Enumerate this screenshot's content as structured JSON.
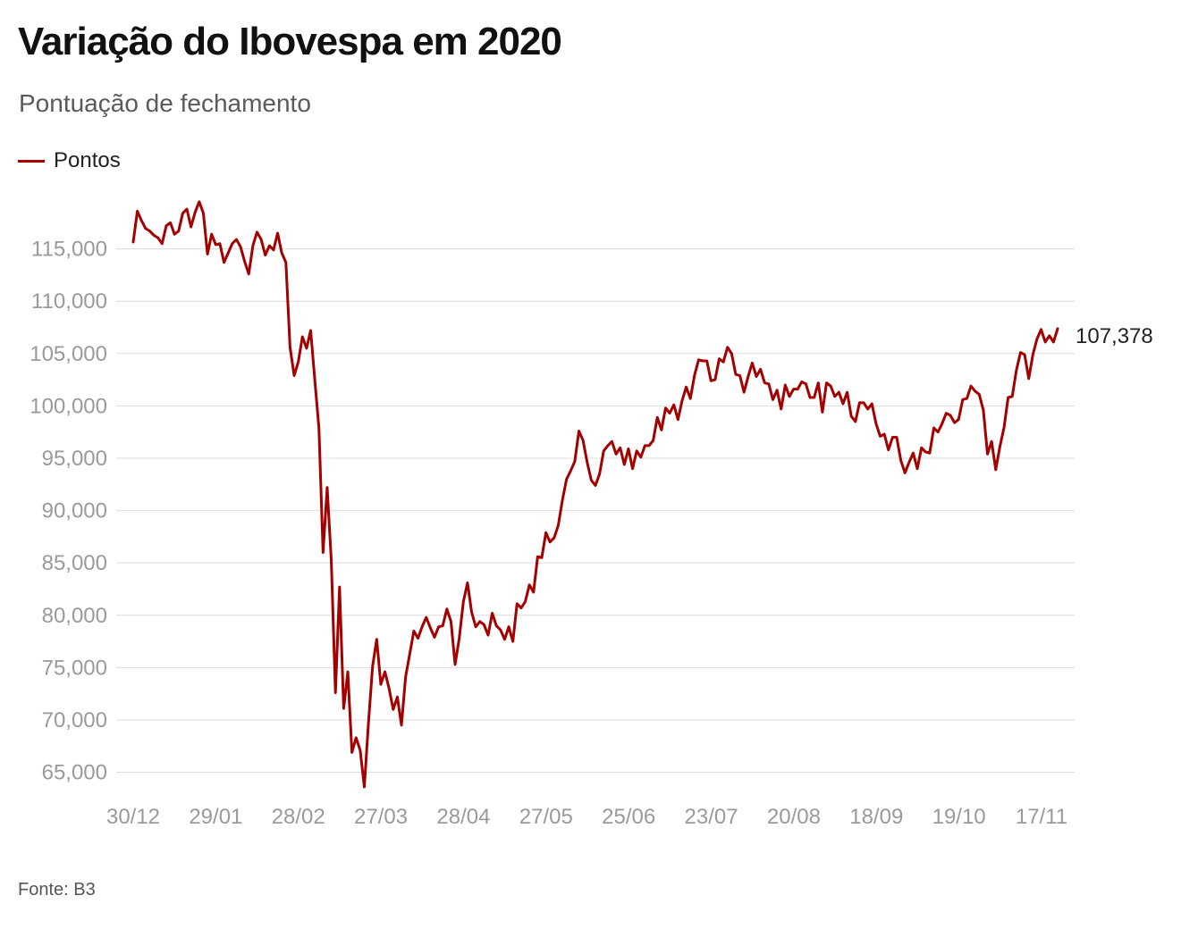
{
  "header": {
    "title": "Variação do Ibovespa em 2020",
    "subtitle": "Pontuação de fechamento"
  },
  "legend": {
    "label": "Pontos",
    "color": "#a50000"
  },
  "footer": {
    "source": "Fonte: B3"
  },
  "chart_data": {
    "type": "line",
    "title": "Variação do Ibovespa em 2020",
    "subtitle": "Pontuação de fechamento",
    "xlabel": "",
    "ylabel": "",
    "ylim": [
      63000,
      120000
    ],
    "grid": true,
    "legend_position": "top-left",
    "y_ticks": [
      65000,
      70000,
      75000,
      80000,
      85000,
      90000,
      95000,
      100000,
      105000,
      110000,
      115000
    ],
    "y_tick_labels": [
      "65,000",
      "70,000",
      "75,000",
      "80,000",
      "85,000",
      "90,000",
      "95,000",
      "100,000",
      "105,000",
      "110,000",
      "115,000"
    ],
    "x_ticks": [
      "30/12",
      "29/01",
      "28/02",
      "27/03",
      "28/04",
      "27/05",
      "25/06",
      "23/07",
      "20/08",
      "18/09",
      "19/10",
      "17/11"
    ],
    "end_label": "107,378",
    "series": [
      {
        "name": "Pontos",
        "color": "#a50000",
        "values": [
          115650,
          118600,
          117700,
          116950,
          116700,
          116300,
          116050,
          115500,
          117200,
          117500,
          116400,
          116700,
          118400,
          118800,
          117100,
          118500,
          119500,
          118400,
          114500,
          116400,
          115400,
          115500,
          113700,
          114600,
          115500,
          115900,
          115200,
          113800,
          112600,
          115300,
          116600,
          115900,
          114400,
          115300,
          114900,
          116500,
          114600,
          113700,
          105600,
          102900,
          104200,
          106600,
          105500,
          107200,
          102500,
          97900,
          86000,
          92200,
          85200,
          72600,
          82700,
          71100,
          74600,
          66900,
          68300,
          67100,
          63600,
          69700,
          75100,
          77700,
          73400,
          74600,
          73000,
          71000,
          72200,
          69500,
          74100,
          76300,
          78500,
          77800,
          78900,
          79800,
          78800,
          77900,
          78900,
          79000,
          80600,
          79400,
          75300,
          77800,
          81300,
          83100,
          80300,
          78900,
          79400,
          79100,
          78100,
          80200,
          79000,
          78600,
          77700,
          78900,
          77500,
          81100,
          80700,
          81300,
          82900,
          82200,
          85600,
          85500,
          87900,
          87000,
          87400,
          88600,
          91000,
          93000,
          93800,
          94700,
          97600,
          96700,
          94600,
          92900,
          92400,
          93500,
          95700,
          96200,
          96600,
          95400,
          96000,
          94400,
          95900,
          94000,
          95700,
          95100,
          96200,
          96200,
          96700,
          98900,
          97700,
          99800,
          99300,
          100100,
          98700,
          100500,
          101800,
          100700,
          102900,
          104400,
          104300,
          104300,
          102400,
          102500,
          104500,
          104200,
          105600,
          105000,
          103000,
          102900,
          101300,
          102800,
          104100,
          102800,
          103500,
          102200,
          102100,
          100600,
          101500,
          99700,
          102000,
          100900,
          101600,
          101600,
          102300,
          102100,
          100800,
          100800,
          102200,
          99400,
          102200,
          101900,
          100900,
          101300,
          100200,
          101300,
          99000,
          98500,
          100300,
          100300,
          99700,
          100200,
          98300,
          97100,
          97300,
          95800,
          97000,
          97000,
          94800,
          93600,
          94600,
          95500,
          94000,
          96000,
          95600,
          95500,
          97900,
          97500,
          98300,
          99300,
          99100,
          98400,
          98700,
          100600,
          100700,
          101900,
          101400,
          101100,
          99600,
          95400,
          96600,
          93900,
          96100,
          97900,
          100800,
          100900,
          103400,
          105100,
          104900,
          102600,
          104900,
          106400,
          107300,
          106100,
          106700,
          106100,
          107378
        ]
      }
    ]
  }
}
